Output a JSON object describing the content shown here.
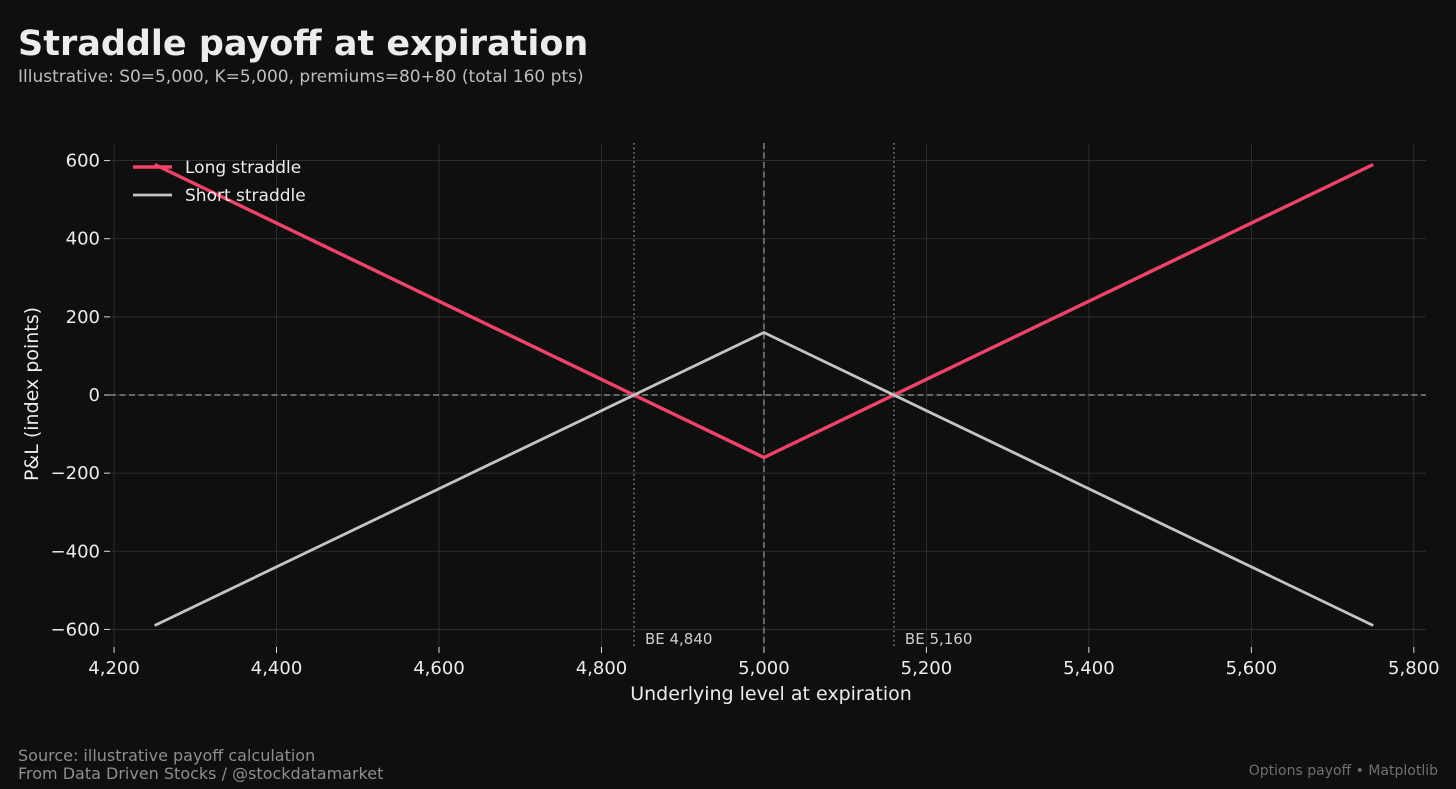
{
  "header": {
    "title": "Straddle payoff at expiration",
    "subtitle": "Illustrative: S0=5,000, K=5,000, premiums=80+80 (total 160 pts)"
  },
  "footer": {
    "source": "Source: illustrative payoff calculation",
    "credit": "From Data Driven Stocks / @stockdatamarket",
    "right": "Options payoff • Matplotlib"
  },
  "colors": {
    "background": "#0f0f0f",
    "long": "#f0436a",
    "short": "#c4c4c4",
    "grid": "#333333",
    "reference": "#9a9a9a"
  },
  "chart_data": {
    "type": "line",
    "title": "Straddle payoff at expiration",
    "xlabel": "Underlying level at expiration",
    "ylabel": "P&L (index points)",
    "xlim": [
      4195,
      5815
    ],
    "ylim": [
      -645,
      645
    ],
    "xticks": [
      4200,
      4400,
      4600,
      4800,
      5000,
      5200,
      5400,
      5600,
      5800
    ],
    "xtick_labels": [
      "4,200",
      "4,400",
      "4,600",
      "4,800",
      "5,000",
      "5,200",
      "5,400",
      "5,600",
      "5,800"
    ],
    "yticks": [
      -600,
      -400,
      -200,
      0,
      200,
      400,
      600
    ],
    "ytick_labels": [
      "−600",
      "−400",
      "−200",
      "0",
      "200",
      "400",
      "600"
    ],
    "grid": true,
    "legend_position": "top-left",
    "series": [
      {
        "name": "Long straddle",
        "color": "#f0436a",
        "x": [
          4250,
          5000,
          5750
        ],
        "y": [
          590,
          -160,
          590
        ]
      },
      {
        "name": "Short straddle",
        "color": "#c4c4c4",
        "x": [
          4250,
          5000,
          5750
        ],
        "y": [
          -590,
          160,
          -590
        ]
      }
    ],
    "reference_lines": [
      {
        "axis": "y",
        "value": 0,
        "style": "dashed"
      },
      {
        "axis": "x",
        "value": 5000,
        "style": "dashed"
      },
      {
        "axis": "x",
        "value": 4840,
        "style": "dotted",
        "label": "BE 4,840"
      },
      {
        "axis": "x",
        "value": 5160,
        "style": "dotted",
        "label": "BE 5,160"
      }
    ]
  }
}
